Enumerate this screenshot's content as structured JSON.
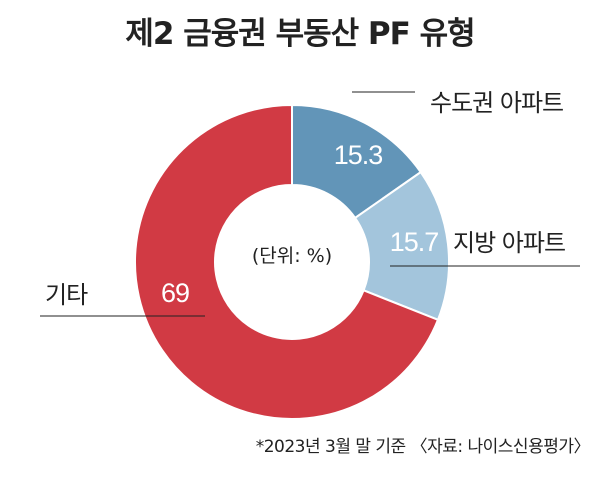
{
  "title": "제2 금융권 부동산 PF 유형",
  "unit_label": "(단위: %)",
  "footnote": "*2023년 3월 말 기준 〈자료: 나이스신용평가〉",
  "chart_data": {
    "type": "pie",
    "style": "donut",
    "title": "제2 금융권 부동산 PF 유형",
    "unit": "%",
    "slices": [
      {
        "label": "수도권 아파트",
        "value": 15.3,
        "display": "15.3",
        "color": "#6295b8"
      },
      {
        "label": "지방 아파트",
        "value": 15.7,
        "display": "15.7",
        "color": "#a3c5dc"
      },
      {
        "label": "기타",
        "value": 69,
        "display": "69",
        "color": "#d13a44"
      }
    ]
  }
}
